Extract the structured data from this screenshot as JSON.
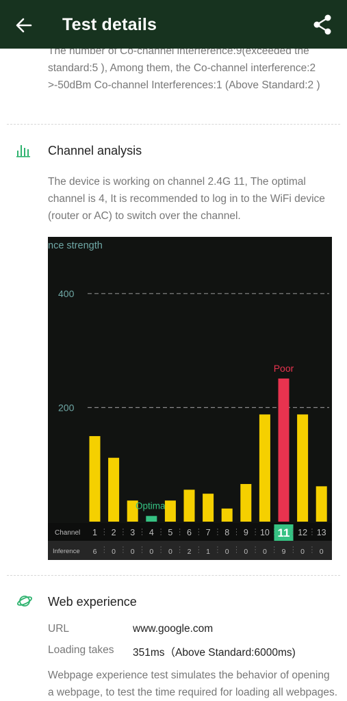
{
  "header": {
    "title": "Test details",
    "back_icon": "arrow-left-icon",
    "share_icon": "share-icon"
  },
  "cci": {
    "text_line1": "The number of Co-channel interference:9(exceeded the",
    "text_line2": "standard:5 ), Among them, the Co-channel interference:2",
    "text_line3": ">-50dBm Co-channel Interferences:1 (Above Standard:2 )"
  },
  "channel_analysis": {
    "icon": "bar-chart-icon",
    "title": "Channel analysis",
    "desc_line1": "The device is working on channel 2.4G 11, The optimal",
    "desc_line2": "channel is 4, It is recommended to log in to the WiFi device",
    "desc_line3": "(router or AC) to switch over the channel."
  },
  "chart_data": {
    "type": "bar",
    "ylabel": "nce strength",
    "yticks": [
      "200",
      "400"
    ],
    "ylim": [
      0,
      440
    ],
    "categories": [
      "1",
      "2",
      "3",
      "4",
      "5",
      "6",
      "7",
      "8",
      "9",
      "10",
      "11",
      "12",
      "13"
    ],
    "values": [
      150,
      112,
      37,
      10,
      37,
      56,
      49,
      23,
      66,
      188,
      251,
      188,
      62
    ],
    "inference": [
      "6",
      "0",
      "0",
      "0",
      "0",
      "2",
      "1",
      "0",
      "0",
      "0",
      "9",
      "0",
      "0"
    ],
    "row_label_channel": "Channel",
    "row_label_inference": "Inference",
    "current_channel": "11",
    "optimal_channel": "4",
    "poor_label": "Poor",
    "optimal_label": "Optimal",
    "colors": {
      "bar": "#f5d000",
      "poor": "#e8334f",
      "optimal": "#36c283",
      "grid": "#8a8a8a",
      "tick": "#6fa8a6"
    }
  },
  "web_experience": {
    "icon": "planet-icon",
    "title": "Web experience",
    "url_label": "URL",
    "url_value": "www.google.com",
    "loading_label": "Loading takes",
    "loading_value": "351ms（Above Standard:6000ms)",
    "desc_line1": "Webpage experience test simulates the behavior of opening",
    "desc_line2": "a webpage, to test the time required for loading all webpages."
  }
}
